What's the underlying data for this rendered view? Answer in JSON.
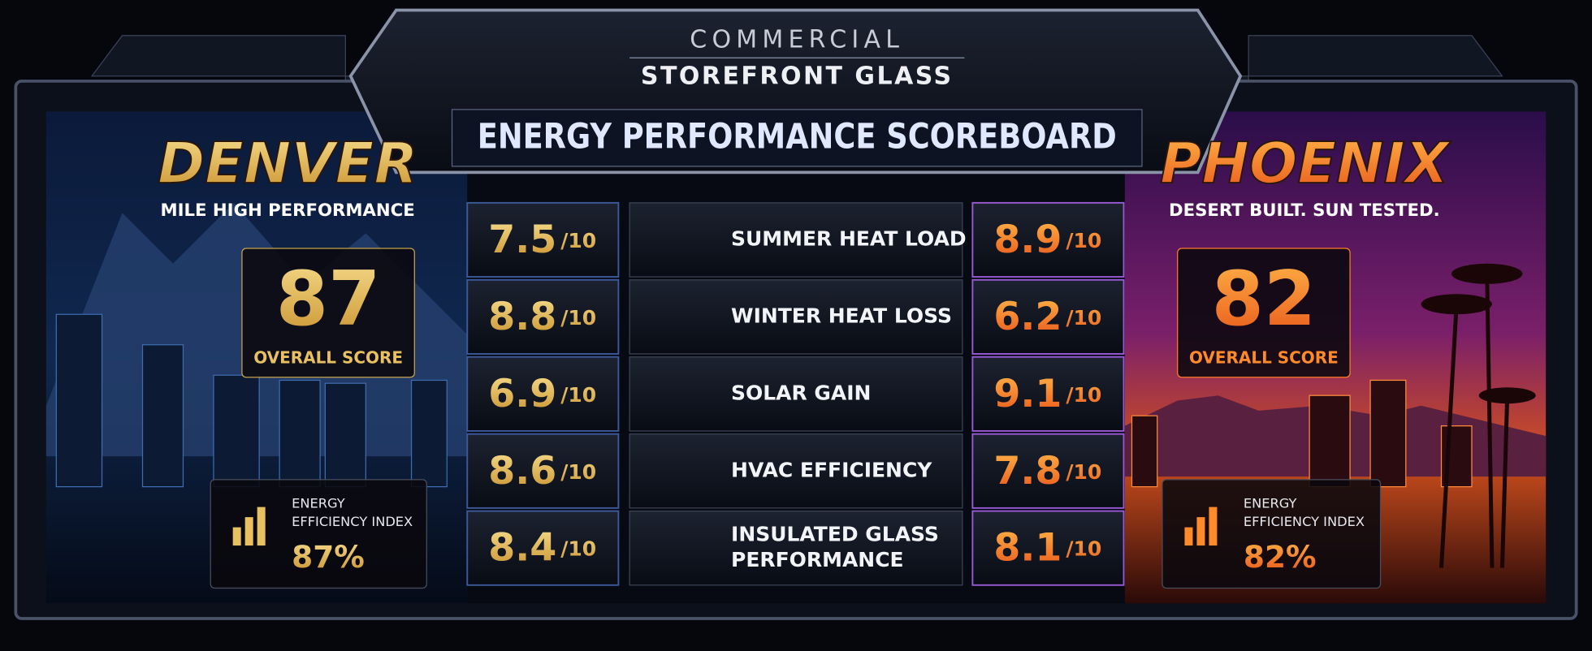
{
  "header": {
    "eyebrow": "COMMERCIAL",
    "title": "STOREFRONT GLASS",
    "subtitle": "ENERGY PERFORMANCE SCOREBOARD"
  },
  "out_of": "/10",
  "metrics": [
    [
      "SUMMER HEAT LOAD"
    ],
    [
      "WINTER HEAT LOSS"
    ],
    [
      "SOLAR GAIN"
    ],
    [
      "HVAC EFFICIENCY"
    ],
    [
      "INSULATED GLASS",
      "PERFORMANCE"
    ]
  ],
  "teams": [
    {
      "name": "DENVER",
      "tagline": "MILE HIGH PERFORMANCE",
      "overall_score": 87,
      "overall_label": "OVERALL SCORE",
      "index_label": [
        "ENERGY",
        "EFFICIENCY INDEX"
      ],
      "index_value": "87%",
      "scores": [
        7.5,
        8.8,
        6.9,
        8.6,
        8.4
      ]
    },
    {
      "name": "PHOENIX",
      "tagline": "DESERT BUILT. SUN TESTED.",
      "overall_score": 82,
      "overall_label": "OVERALL SCORE",
      "index_label": [
        "ENERGY",
        "EFFICIENCY INDEX"
      ],
      "index_value": "82%",
      "scores": [
        8.9,
        6.2,
        9.1,
        7.8,
        8.1
      ]
    }
  ]
}
